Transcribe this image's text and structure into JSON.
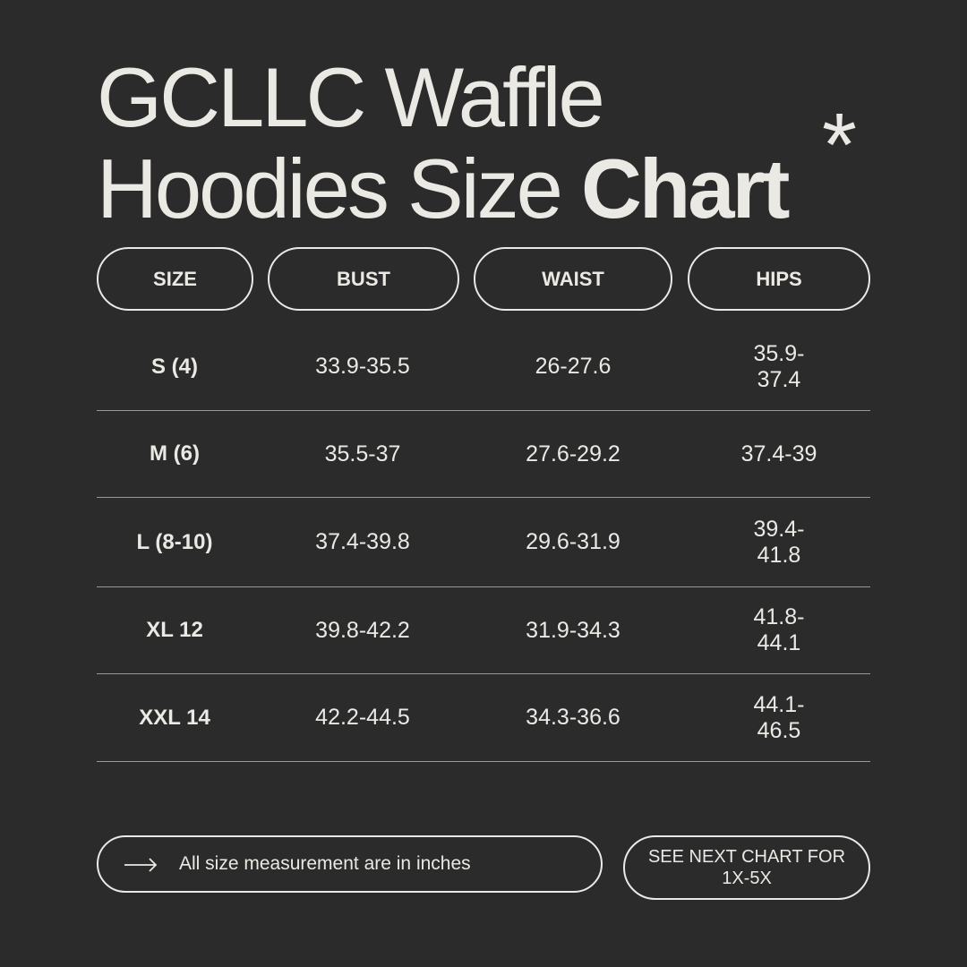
{
  "title": {
    "line1": "GCLLC Waffle",
    "line2_regular": "Hoodies Size",
    "line2_bold": "Chart",
    "decoration": "*"
  },
  "headers": [
    "SIZE",
    "BUST",
    "WAIST",
    "HIPS"
  ],
  "rows": [
    {
      "size": "S (4)",
      "bust": "33.9-35.5",
      "waist": "26-27.6",
      "hips": "35.9-37.4"
    },
    {
      "size": "M (6)",
      "bust": "35.5-37",
      "waist": "27.6-29.2",
      "hips": "37.4-39"
    },
    {
      "size": "L (8-10)",
      "bust": "37.4-39.8",
      "waist": "29.6-31.9",
      "hips": "39.4-41.8"
    },
    {
      "size": "XL 12",
      "bust": "39.8-42.2",
      "waist": "31.9-34.3",
      "hips": "41.8-44.1"
    },
    {
      "size": "XXL 14",
      "bust": "42.2-44.5",
      "waist": "34.3-36.6",
      "hips": "44.1-46.5"
    }
  ],
  "footer": {
    "note_icon": "arrow-right-icon",
    "note": "All size measurement are in inches",
    "next_line1": "SEE NEXT CHART FOR",
    "next_line2": "1X-5X"
  },
  "colors": {
    "background": "#2b2b2b",
    "text": "#ebe9e4"
  }
}
